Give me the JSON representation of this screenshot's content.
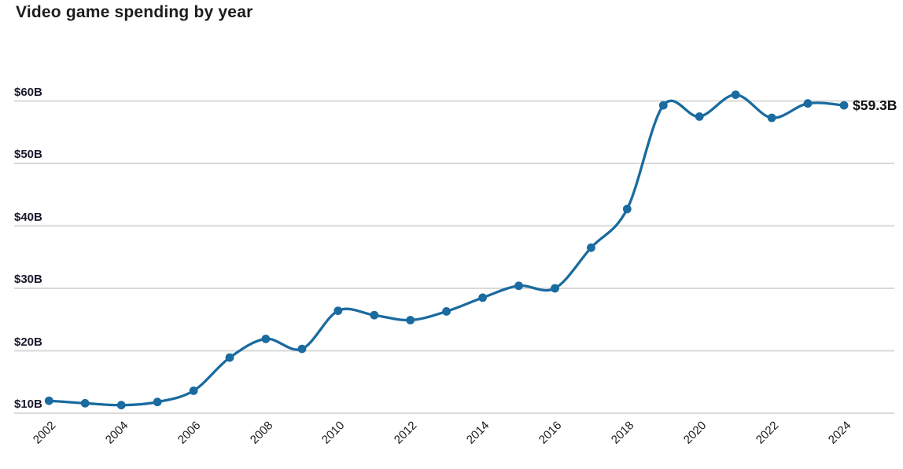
{
  "chart_data": {
    "type": "line",
    "title": "Video game spending by year",
    "x": [
      2002,
      2003,
      2004,
      2005,
      2006,
      2007,
      2008,
      2009,
      2010,
      2011,
      2012,
      2013,
      2014,
      2015,
      2016,
      2017,
      2018,
      2019,
      2020,
      2021,
      2022,
      2023,
      2024
    ],
    "values": [
      12.0,
      11.6,
      11.3,
      11.8,
      13.6,
      18.9,
      21.9,
      20.3,
      26.4,
      25.7,
      24.9,
      26.3,
      28.5,
      30.4,
      30.0,
      36.5,
      42.7,
      59.3,
      57.5,
      61.0,
      57.3,
      59.6,
      59.3
    ],
    "end_annotation": "$59.3B",
    "y_ticks": [
      {
        "value": 10,
        "label": "$10B"
      },
      {
        "value": 20,
        "label": "$20B"
      },
      {
        "value": 30,
        "label": "$30B"
      },
      {
        "value": 40,
        "label": "$40B"
      },
      {
        "value": 50,
        "label": "$50B"
      },
      {
        "value": 60,
        "label": "$60B"
      }
    ],
    "x_ticks": [
      "2002",
      "2004",
      "2006",
      "2008",
      "2010",
      "2012",
      "2014",
      "2016",
      "2018",
      "2020",
      "2022",
      "2024"
    ],
    "ylim": [
      10,
      62.5
    ],
    "xlabel": "",
    "ylabel": "",
    "grid": "horizontal",
    "legend": false,
    "colors": {
      "line": "#1a6b9f",
      "point": "#1a6b9f",
      "gridline": "#d9d9d9",
      "title_text": "#1d1d1d",
      "y_tick_text": "#1a1a2e",
      "x_tick_text": "#1a1a1a",
      "annotation_text": "#111111",
      "background": "#ffffff"
    }
  }
}
